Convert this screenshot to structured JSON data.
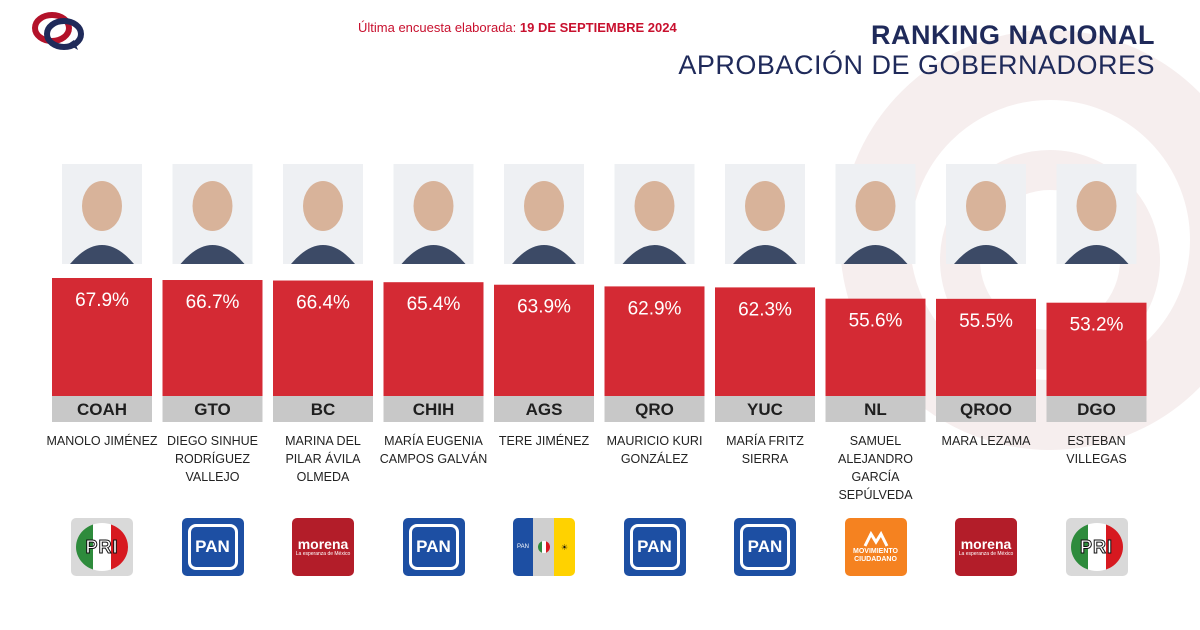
{
  "header": {
    "survey_label": "Última encuesta elaborada:",
    "survey_date": "19 DE SEPTIEMBRE 2024",
    "title": "RANKING NACIONAL",
    "subtitle": "APROBACIÓN DE GOBERNADORES"
  },
  "colors": {
    "bar": "#d42a34",
    "tab": "#c8c8c8",
    "title": "#1f2a5a",
    "accent": "#c8102e"
  },
  "chart_data": {
    "type": "bar",
    "title": "RANKING NACIONAL",
    "subtitle": "APROBACIÓN DE GOBERNADORES",
    "categories": [
      "COAH",
      "GTO",
      "BC",
      "CHIH",
      "AGS",
      "QRO",
      "YUC",
      "NL",
      "QROO",
      "DGO"
    ],
    "values": [
      67.9,
      66.7,
      66.4,
      65.4,
      63.9,
      62.9,
      62.3,
      55.6,
      55.5,
      53.2
    ],
    "value_labels": [
      "67.9%",
      "66.7%",
      "66.4%",
      "65.4%",
      "63.9%",
      "62.9%",
      "62.3%",
      "55.6%",
      "55.5%",
      "53.2%"
    ],
    "governors": [
      "MANOLO JIMÉNEZ",
      "DIEGO SINHUE RODRÍGUEZ VALLEJO",
      "MARINA DEL PILAR ÁVILA OLMEDA",
      "MARÍA EUGENIA CAMPOS GALVÁN",
      "TERE JIMÉNEZ",
      "MAURICIO KURI GONZÁLEZ",
      "MARÍA FRITZ SIERRA",
      "SAMUEL ALEJANDRO GARCÍA SEPÚLVEDA",
      "MARA LEZAMA",
      "ESTEBAN VILLEGAS"
    ],
    "parties": [
      "PRI",
      "PAN",
      "morena",
      "PAN",
      "PAN-PRI-PRD",
      "PAN",
      "PAN",
      "MOVIMIENTO CIUDADANO",
      "morena",
      "PRI"
    ]
  },
  "party_text": {
    "pri": "PRI",
    "pan": "PAN",
    "morena": "morena",
    "morena_tagline": "La esperanza de México",
    "mc": "MOVIMIENTO CIUDADANO"
  }
}
